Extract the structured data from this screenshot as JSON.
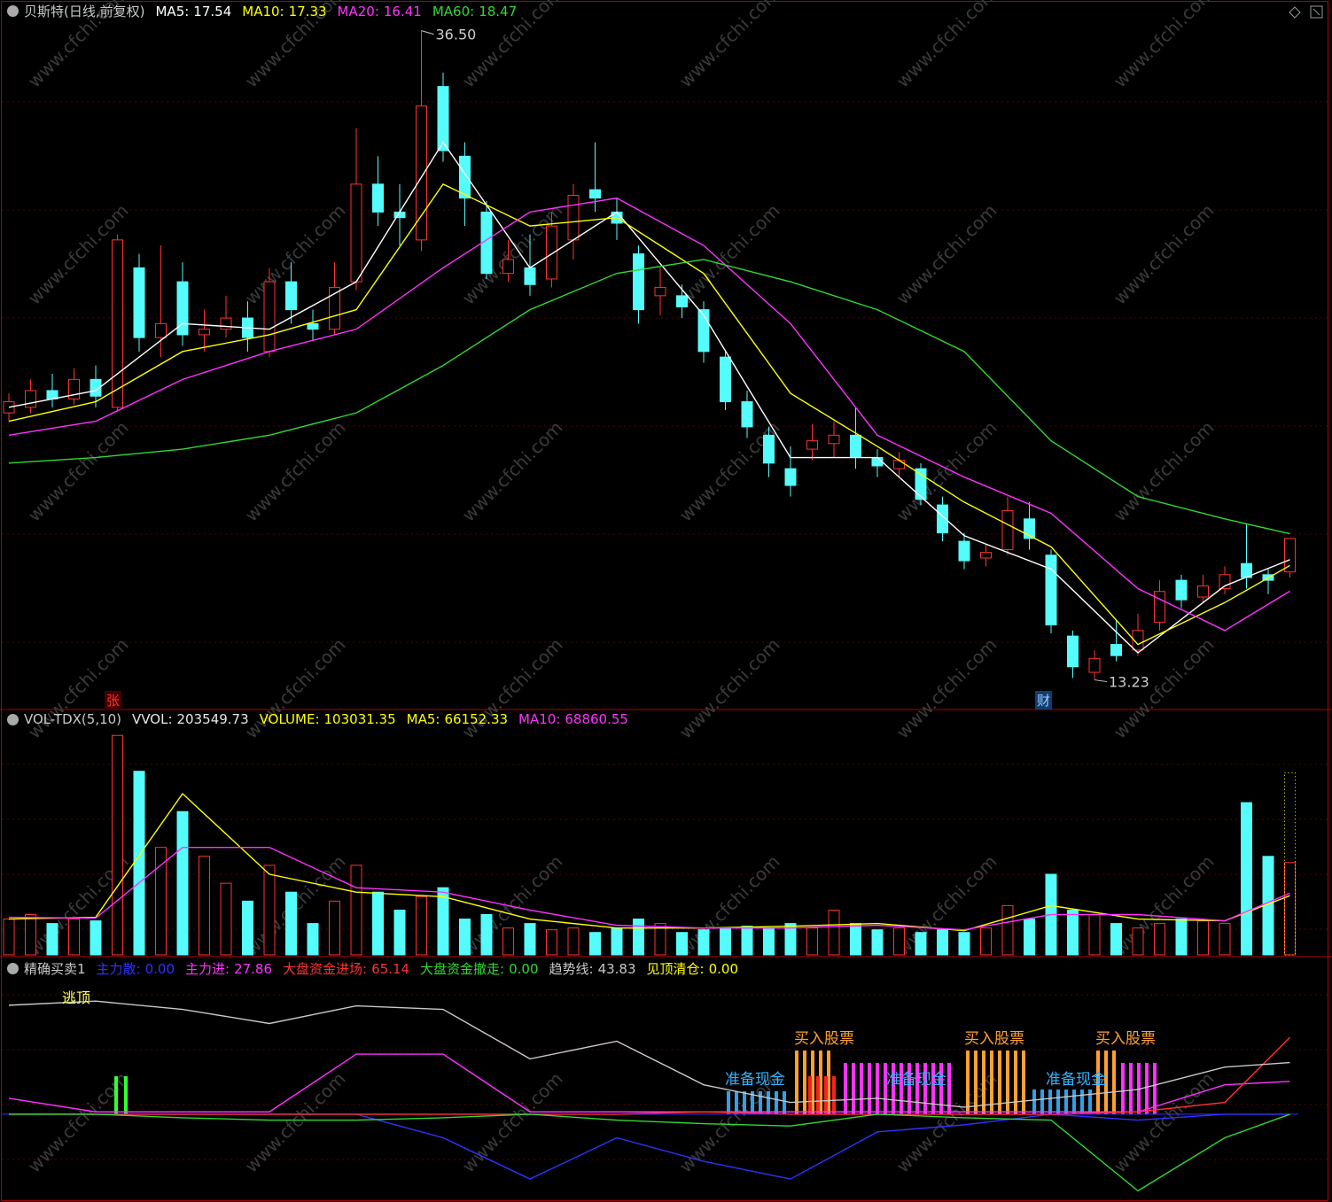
{
  "watermark": "www.cfchi.com",
  "chart_data": [
    {
      "type": "candlestick",
      "title": "贝斯特(日线,前复权)",
      "open": [
        22.8,
        23.0,
        23.6,
        23.3,
        24.0,
        23.0,
        28.0,
        25.5,
        27.5,
        25.6,
        25.8,
        26.2,
        25.0,
        27.5,
        26.0,
        25.8,
        27.5,
        31.0,
        30.0,
        29.0,
        34.5,
        32.0,
        30.0,
        27.8,
        28.0,
        27.6,
        29.0,
        30.8,
        30.0,
        28.5,
        27.0,
        27.0,
        26.5,
        24.8,
        23.2,
        22.0,
        20.8,
        21.5,
        21.7,
        22.0,
        21.2,
        20.8,
        20.8,
        19.5,
        18.2,
        17.6,
        17.9,
        19.0,
        17.7,
        14.8,
        13.5,
        14.5,
        14.3,
        15.3,
        16.8,
        16.2,
        16.5,
        17.4,
        17.0,
        17.1
      ],
      "high": [
        23.5,
        24.0,
        24.2,
        24.4,
        24.5,
        29.2,
        28.5,
        28.8,
        28.2,
        26.5,
        27.0,
        26.8,
        28.0,
        28.2,
        26.5,
        28.2,
        33.0,
        32.0,
        31.0,
        36.5,
        35.0,
        32.5,
        30.4,
        29.0,
        29.2,
        30.0,
        31.0,
        32.5,
        30.5,
        28.8,
        28.0,
        27.4,
        26.8,
        25.0,
        23.6,
        22.3,
        21.6,
        22.4,
        22.5,
        23.0,
        21.5,
        21.4,
        21.0,
        19.8,
        18.5,
        18.1,
        19.8,
        19.6,
        17.9,
        15.0,
        14.3,
        15.4,
        15.6,
        16.8,
        17.0,
        17.0,
        17.3,
        18.8,
        17.2,
        18.3
      ],
      "low": [
        22.5,
        22.8,
        23.0,
        23.1,
        23.0,
        22.9,
        25.0,
        24.8,
        25.2,
        25.0,
        25.5,
        25.0,
        24.8,
        26.0,
        25.4,
        25.6,
        27.2,
        29.5,
        28.8,
        28.6,
        31.8,
        29.5,
        27.6,
        27.5,
        27.0,
        27.3,
        28.3,
        30.0,
        29.0,
        26.0,
        26.3,
        26.2,
        24.6,
        22.9,
        21.9,
        20.5,
        19.8,
        21.1,
        21.2,
        20.8,
        20.5,
        20.5,
        19.5,
        18.2,
        17.2,
        17.3,
        17.7,
        17.9,
        14.9,
        13.3,
        13.23,
        13.9,
        14.1,
        15.0,
        15.8,
        16.0,
        16.3,
        16.5,
        16.3,
        16.9
      ],
      "close": [
        23.2,
        23.6,
        23.3,
        24.0,
        23.4,
        29.0,
        25.5,
        26.0,
        25.6,
        25.8,
        26.2,
        25.5,
        27.5,
        26.5,
        25.8,
        27.3,
        31.0,
        30.0,
        29.8,
        33.8,
        32.2,
        30.5,
        27.8,
        28.3,
        27.4,
        29.5,
        30.6,
        30.5,
        29.6,
        26.5,
        27.3,
        26.6,
        25.0,
        23.2,
        22.3,
        21.0,
        20.2,
        21.8,
        22.0,
        21.2,
        20.9,
        21.1,
        19.7,
        18.5,
        17.5,
        17.8,
        19.3,
        18.3,
        15.2,
        13.7,
        14.0,
        14.1,
        15.0,
        16.4,
        16.1,
        16.6,
        17.0,
        16.9,
        16.8,
        18.3
      ],
      "ylim": [
        12.2,
        37.6
      ],
      "up_color": "#ff3232",
      "down_color": "#54fcfc",
      "lines_x": [
        0,
        4,
        8,
        12,
        16,
        20,
        24,
        28,
        32,
        36,
        40,
        44,
        48,
        52,
        56,
        59
      ],
      "series": [
        {
          "name": "MA5:",
          "value": 17.54,
          "color": "#ffffff",
          "values": [
            23.0,
            23.6,
            26.0,
            25.8,
            27.5,
            32.5,
            28.0,
            30.0,
            26.3,
            21.2,
            21.2,
            18.4,
            17.2,
            14.2,
            16.6,
            17.54
          ]
        },
        {
          "name": "MA10:",
          "value": 17.33,
          "color": "#ffff00",
          "values": [
            22.5,
            23.2,
            25.0,
            25.6,
            26.5,
            31.0,
            29.5,
            29.8,
            27.8,
            23.5,
            21.6,
            19.6,
            18.0,
            14.5,
            16.0,
            17.33
          ]
        },
        {
          "name": "MA20:",
          "value": 16.41,
          "color": "#ff32ff",
          "values": [
            22.0,
            22.5,
            24.0,
            25.0,
            25.8,
            28.0,
            30.0,
            30.5,
            28.8,
            26.0,
            22.0,
            20.5,
            19.2,
            16.5,
            15.0,
            16.41
          ]
        },
        {
          "name": "MA60:",
          "value": 18.47,
          "color": "#32d732",
          "values": [
            21.0,
            21.2,
            21.5,
            22.0,
            22.8,
            24.5,
            26.5,
            27.8,
            28.3,
            27.5,
            26.5,
            25.0,
            21.8,
            19.8,
            19.0,
            18.47
          ]
        }
      ],
      "annotations": [
        {
          "value": 36.5,
          "label": "36.50"
        },
        13.23
      ],
      "markers": [
        "张",
        "财"
      ]
    },
    {
      "type": "bar",
      "title": "VOL-TDX(5,10)",
      "values": [
        40000,
        45000,
        35000,
        40000,
        38000,
        245000,
        205000,
        120000,
        160000,
        110000,
        80000,
        60000,
        100000,
        70000,
        35000,
        60000,
        100000,
        70000,
        50000,
        65000,
        75000,
        40000,
        45000,
        30000,
        35000,
        28000,
        30000,
        25000,
        30000,
        40000,
        35000,
        25000,
        28000,
        30000,
        32000,
        30000,
        35000,
        30000,
        50000,
        35000,
        28000,
        30000,
        25000,
        28000,
        25000,
        30000,
        55000,
        40000,
        90000,
        50000,
        45000,
        35000,
        30000,
        35000,
        40000,
        38000,
        35000,
        170000,
        110000,
        103031.35
      ],
      "ylim": [
        0,
        270000
      ],
      "vvol": {
        "name": "VVOL:",
        "value": 203549.73
      },
      "volume": {
        "name": "VOLUME:",
        "value": 103031.35
      },
      "series": [
        {
          "name": "MA5:",
          "value": 66152.33,
          "color": "#ffff00",
          "values": [
            40000,
            42000,
            180000,
            90000,
            70000,
            65000,
            40000,
            30000,
            30000,
            32000,
            35000,
            27000,
            55000,
            40000,
            38000,
            66152.33
          ]
        },
        {
          "name": "MA10:",
          "value": 68860.55,
          "color": "#ff32ff",
          "values": [
            42000,
            41000,
            120000,
            120000,
            75000,
            70000,
            50000,
            33000,
            30000,
            30000,
            33000,
            28000,
            45000,
            45000,
            38000,
            68860.55
          ]
        }
      ]
    },
    {
      "type": "line",
      "title": "精确买卖1",
      "ylim": [
        -73,
        130
      ],
      "series": [
        {
          "name": "主力散:",
          "value": {
            "value": 0,
            "label": "0.00"
          },
          "color": "#3232ff",
          "values": [
            0,
            0,
            0,
            0,
            0,
            -20,
            -55,
            -20,
            -40,
            -55,
            -15,
            -9,
            0,
            -5,
            0,
            0
          ]
        },
        {
          "name": "主力进:",
          "value": 27.86,
          "color": "#ff32ff",
          "values": [
            13.5,
            2,
            2,
            2,
            51,
            51,
            2,
            2,
            2,
            2,
            2,
            2,
            2,
            2,
            25,
            27.86
          ]
        },
        {
          "name": "大盘资金进场:",
          "value": 65.14,
          "color": "#ff3232",
          "values": [
            0,
            0,
            0,
            0,
            0,
            0,
            0,
            0,
            2,
            0,
            0,
            0,
            0,
            2,
            10,
            65.14
          ]
        },
        {
          "name": "大盘资金撤走:",
          "value": {
            "value": 0,
            "label": "0.00"
          },
          "color": "#32d732",
          "values": [
            0,
            0,
            -3,
            -5,
            -5,
            -3,
            0,
            -5,
            -8,
            -10,
            0,
            -3,
            -5,
            -65,
            -20,
            0
          ]
        },
        {
          "name": "趋势线:",
          "value": 43.83,
          "color": "#c8c8c8",
          "values": [
            92.5,
            96,
            89,
            77,
            92,
            89,
            47,
            62,
            25,
            10,
            13.5,
            6,
            13.5,
            21,
            40,
            43.83
          ]
        },
        {
          "name": "见顶清仓:",
          "value": {
            "value": 0,
            "label": "0.00"
          },
          "color": "#ffff00"
        }
      ],
      "annotations": [
        "逃顶",
        "准备现金",
        "准备现金",
        "准备现金",
        "买入股票",
        "买入股票",
        "买入股票"
      ]
    }
  ]
}
